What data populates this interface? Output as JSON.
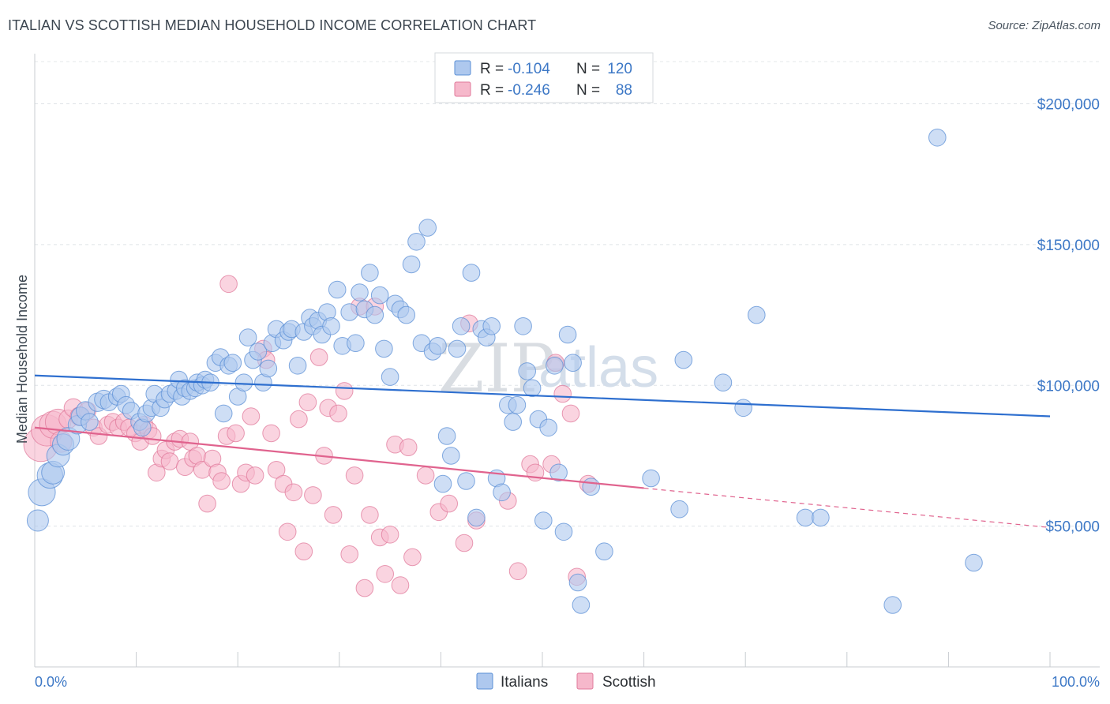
{
  "title": "ITALIAN VS SCOTTISH MEDIAN HOUSEHOLD INCOME CORRELATION CHART",
  "source": "Source: ZipAtlas.com",
  "watermark": {
    "zip": "ZIP",
    "atlas": "atlas"
  },
  "legend": {
    "r_label": "R =",
    "n_label": "N =",
    "series": [
      {
        "name": "Italians",
        "r": "-0.104",
        "n": "120",
        "fill": "#aec8ee",
        "stroke": "#5b8fd6"
      },
      {
        "name": "Scottish",
        "r": "-0.246",
        "n": "88",
        "fill": "#f6b8cb",
        "stroke": "#e07a9b"
      }
    ]
  },
  "chart_data": {
    "type": "scatter",
    "title": "ITALIAN VS SCOTTISH MEDIAN HOUSEHOLD INCOME CORRELATION CHART",
    "xlabel": "",
    "ylabel": "Median Household Income",
    "xlim": [
      0,
      100
    ],
    "ylim": [
      0,
      215000
    ],
    "x_tick_labels": [
      "0.0%",
      "100.0%"
    ],
    "y_ticks": [
      50000,
      100000,
      150000,
      200000
    ],
    "y_tick_labels": [
      "$50,000",
      "$100,000",
      "$150,000",
      "$200,000"
    ],
    "series": [
      {
        "name": "Italians",
        "color": "#5b8fd6",
        "fill": "#aec8ee",
        "trend": {
          "x0": 0,
          "y0": 103500,
          "x1": 100,
          "y1": 89000,
          "color": "#2e6fcf"
        },
        "points": [
          [
            0.3,
            52000,
            1.5
          ],
          [
            0.7,
            62000,
            1.9
          ],
          [
            1.5,
            68000,
            1.8
          ],
          [
            1.8,
            69000,
            1.6
          ],
          [
            2.3,
            75000,
            1.6
          ],
          [
            2.8,
            79000,
            1.5
          ],
          [
            3.3,
            81000,
            1.6
          ],
          [
            4.2,
            86000,
            1.3
          ],
          [
            4.5,
            89000,
            1.3
          ],
          [
            5.0,
            91000,
            1.3
          ],
          [
            5.4,
            87000,
            1.2
          ],
          [
            6.2,
            94000,
            1.3
          ],
          [
            6.8,
            95000,
            1.3
          ],
          [
            7.3,
            94000,
            1.2
          ],
          [
            8.1,
            96000,
            1.2
          ],
          [
            8.5,
            97000,
            1.2
          ],
          [
            9.0,
            93000,
            1.2
          ],
          [
            9.5,
            91000,
            1.2
          ],
          [
            10.3,
            87000,
            1.2
          ],
          [
            10.6,
            85000,
            1.2
          ],
          [
            11.0,
            90000,
            1.2
          ],
          [
            11.5,
            92000,
            1.2
          ],
          [
            11.8,
            97000,
            1.2
          ],
          [
            12.4,
            92000,
            1.2
          ],
          [
            12.8,
            95000,
            1.2
          ],
          [
            13.3,
            97000,
            1.2
          ],
          [
            13.9,
            98000,
            1.2
          ],
          [
            14.2,
            102000,
            1.2
          ],
          [
            14.5,
            96000,
            1.2
          ],
          [
            14.8,
            99000,
            1.2
          ],
          [
            15.3,
            98000,
            1.2
          ],
          [
            15.8,
            99000,
            1.2
          ],
          [
            16.0,
            101000,
            1.2
          ],
          [
            16.5,
            100000,
            1.2
          ],
          [
            16.8,
            102000,
            1.2
          ],
          [
            17.3,
            101000,
            1.2
          ],
          [
            17.8,
            108000,
            1.2
          ],
          [
            18.3,
            110000,
            1.2
          ],
          [
            18.6,
            90000,
            1.2
          ],
          [
            19.1,
            107000,
            1.2
          ],
          [
            19.5,
            108000,
            1.2
          ],
          [
            20.0,
            96000,
            1.2
          ],
          [
            20.6,
            101000,
            1.2
          ],
          [
            21.0,
            117000,
            1.2
          ],
          [
            21.5,
            109000,
            1.2
          ],
          [
            22.0,
            112000,
            1.2
          ],
          [
            22.5,
            101000,
            1.2
          ],
          [
            23.0,
            106000,
            1.2
          ],
          [
            23.4,
            115000,
            1.2
          ],
          [
            23.8,
            120000,
            1.2
          ],
          [
            24.5,
            116000,
            1.2
          ],
          [
            25.0,
            119000,
            1.2
          ],
          [
            25.3,
            120000,
            1.2
          ],
          [
            25.9,
            107000,
            1.2
          ],
          [
            26.5,
            119000,
            1.2
          ],
          [
            27.1,
            124000,
            1.2
          ],
          [
            27.4,
            121000,
            1.2
          ],
          [
            27.9,
            123000,
            1.2
          ],
          [
            28.3,
            118000,
            1.2
          ],
          [
            28.8,
            126000,
            1.2
          ],
          [
            29.2,
            121000,
            1.2
          ],
          [
            29.8,
            134000,
            1.2
          ],
          [
            30.3,
            114000,
            1.2
          ],
          [
            31.0,
            126000,
            1.2
          ],
          [
            31.6,
            115000,
            1.2
          ],
          [
            32.0,
            133000,
            1.2
          ],
          [
            32.5,
            127000,
            1.2
          ],
          [
            33.0,
            140000,
            1.2
          ],
          [
            33.5,
            125000,
            1.2
          ],
          [
            34.0,
            132000,
            1.2
          ],
          [
            34.4,
            113000,
            1.2
          ],
          [
            35.0,
            103000,
            1.2
          ],
          [
            35.5,
            129000,
            1.2
          ],
          [
            36.0,
            127000,
            1.2
          ],
          [
            36.6,
            125000,
            1.2
          ],
          [
            37.1,
            143000,
            1.2
          ],
          [
            37.6,
            151000,
            1.2
          ],
          [
            38.1,
            115000,
            1.2
          ],
          [
            38.7,
            156000,
            1.2
          ],
          [
            39.2,
            112000,
            1.2
          ],
          [
            39.7,
            114000,
            1.2
          ],
          [
            40.2,
            65000,
            1.2
          ],
          [
            40.6,
            82000,
            1.2
          ],
          [
            41.0,
            75000,
            1.2
          ],
          [
            41.6,
            113000,
            1.2
          ],
          [
            42.0,
            121000,
            1.2
          ],
          [
            42.5,
            66000,
            1.2
          ],
          [
            43.0,
            140000,
            1.2
          ],
          [
            43.5,
            53000,
            1.2
          ],
          [
            44.0,
            120000,
            1.2
          ],
          [
            44.5,
            117000,
            1.2
          ],
          [
            45.0,
            121000,
            1.2
          ],
          [
            45.5,
            67000,
            1.2
          ],
          [
            46.0,
            62000,
            1.2
          ],
          [
            46.6,
            93000,
            1.2
          ],
          [
            47.1,
            87000,
            1.2
          ],
          [
            47.5,
            93000,
            1.2
          ],
          [
            48.1,
            121000,
            1.2
          ],
          [
            48.5,
            105000,
            1.2
          ],
          [
            49.0,
            99000,
            1.2
          ],
          [
            49.6,
            88000,
            1.2
          ],
          [
            50.1,
            52000,
            1.2
          ],
          [
            50.6,
            85000,
            1.2
          ],
          [
            51.2,
            107000,
            1.2
          ],
          [
            51.6,
            69000,
            1.2
          ],
          [
            52.1,
            48000,
            1.2
          ],
          [
            52.5,
            118000,
            1.2
          ],
          [
            53.0,
            108000,
            1.2
          ],
          [
            53.5,
            30000,
            1.2
          ],
          [
            53.8,
            22000,
            1.2
          ],
          [
            54.8,
            64000,
            1.2
          ],
          [
            56.1,
            41000,
            1.2
          ],
          [
            60.7,
            67000,
            1.2
          ],
          [
            63.5,
            56000,
            1.2
          ],
          [
            63.9,
            109000,
            1.2
          ],
          [
            67.8,
            101000,
            1.2
          ],
          [
            69.8,
            92000,
            1.2
          ],
          [
            71.1,
            125000,
            1.2
          ],
          [
            75.9,
            53000,
            1.2
          ],
          [
            77.4,
            53000,
            1.2
          ],
          [
            84.5,
            22000,
            1.2
          ],
          [
            88.9,
            188000,
            1.2
          ],
          [
            92.5,
            37000,
            1.2
          ]
        ]
      },
      {
        "name": "Scottish",
        "color": "#e07a9b",
        "fill": "#f6b8cb",
        "trend": {
          "x0": 0,
          "y0": 85000,
          "x1": 60,
          "y1": 63500,
          "x2": 100,
          "y2": 49500,
          "color": "#e0638e"
        },
        "points": [
          [
            0.6,
            79000,
            2.4
          ],
          [
            1.2,
            84000,
            2.2
          ],
          [
            1.8,
            86000,
            1.9
          ],
          [
            2.3,
            87000,
            1.8
          ],
          [
            2.6,
            80000,
            1.5
          ],
          [
            3.3,
            88000,
            1.3
          ],
          [
            3.8,
            92000,
            1.3
          ],
          [
            4.4,
            89000,
            1.3
          ],
          [
            5.2,
            91000,
            1.2
          ],
          [
            5.8,
            85000,
            1.2
          ],
          [
            6.3,
            82000,
            1.2
          ],
          [
            7.2,
            86000,
            1.2
          ],
          [
            7.7,
            87000,
            1.2
          ],
          [
            8.2,
            85000,
            1.2
          ],
          [
            8.8,
            87000,
            1.2
          ],
          [
            9.3,
            85000,
            1.2
          ],
          [
            9.9,
            83000,
            1.2
          ],
          [
            10.4,
            80000,
            1.2
          ],
          [
            10.8,
            86000,
            1.2
          ],
          [
            11.2,
            84000,
            1.2
          ],
          [
            11.6,
            82000,
            1.2
          ],
          [
            12.0,
            69000,
            1.2
          ],
          [
            12.5,
            74000,
            1.2
          ],
          [
            12.9,
            77000,
            1.2
          ],
          [
            13.3,
            73000,
            1.2
          ],
          [
            13.8,
            80000,
            1.2
          ],
          [
            14.3,
            81000,
            1.2
          ],
          [
            14.8,
            71000,
            1.2
          ],
          [
            15.3,
            80000,
            1.2
          ],
          [
            15.6,
            74000,
            1.2
          ],
          [
            16.0,
            75000,
            1.2
          ],
          [
            16.5,
            70000,
            1.2
          ],
          [
            17.0,
            58000,
            1.2
          ],
          [
            17.5,
            74000,
            1.2
          ],
          [
            18.0,
            69000,
            1.2
          ],
          [
            18.4,
            66000,
            1.2
          ],
          [
            18.9,
            82000,
            1.2
          ],
          [
            19.1,
            136000,
            1.2
          ],
          [
            19.8,
            83000,
            1.2
          ],
          [
            20.3,
            65000,
            1.2
          ],
          [
            20.8,
            69000,
            1.2
          ],
          [
            21.3,
            89000,
            1.2
          ],
          [
            21.7,
            68000,
            1.2
          ],
          [
            22.5,
            113000,
            1.2
          ],
          [
            22.8,
            109000,
            1.2
          ],
          [
            23.3,
            83000,
            1.2
          ],
          [
            23.8,
            70000,
            1.2
          ],
          [
            24.5,
            65000,
            1.2
          ],
          [
            24.9,
            48000,
            1.2
          ],
          [
            25.5,
            62000,
            1.2
          ],
          [
            26.0,
            88000,
            1.2
          ],
          [
            26.5,
            41000,
            1.2
          ],
          [
            26.9,
            94000,
            1.2
          ],
          [
            27.4,
            61000,
            1.2
          ],
          [
            28.0,
            110000,
            1.2
          ],
          [
            28.5,
            75000,
            1.2
          ],
          [
            28.9,
            92000,
            1.2
          ],
          [
            29.4,
            54000,
            1.2
          ],
          [
            29.9,
            90000,
            1.2
          ],
          [
            30.5,
            98000,
            1.2
          ],
          [
            31.0,
            40000,
            1.2
          ],
          [
            31.5,
            68000,
            1.2
          ],
          [
            32.0,
            128000,
            1.2
          ],
          [
            32.5,
            28000,
            1.2
          ],
          [
            33.0,
            54000,
            1.2
          ],
          [
            33.5,
            128000,
            1.2
          ],
          [
            34.0,
            46000,
            1.2
          ],
          [
            34.5,
            33000,
            1.2
          ],
          [
            35.0,
            47000,
            1.2
          ],
          [
            35.5,
            79000,
            1.2
          ],
          [
            36.0,
            29000,
            1.2
          ],
          [
            36.8,
            78000,
            1.2
          ],
          [
            37.2,
            39000,
            1.2
          ],
          [
            38.5,
            68000,
            1.2
          ],
          [
            39.8,
            55000,
            1.2
          ],
          [
            40.8,
            58000,
            1.2
          ],
          [
            42.3,
            44000,
            1.2
          ],
          [
            42.8,
            122000,
            1.2
          ],
          [
            43.5,
            52000,
            1.2
          ],
          [
            46.6,
            59000,
            1.2
          ],
          [
            47.6,
            34000,
            1.2
          ],
          [
            48.8,
            72000,
            1.2
          ],
          [
            49.3,
            69000,
            1.2
          ],
          [
            50.9,
            72000,
            1.2
          ],
          [
            51.3,
            108000,
            1.2
          ],
          [
            52.0,
            97000,
            1.2
          ],
          [
            52.8,
            90000,
            1.2
          ],
          [
            53.4,
            32000,
            1.2
          ],
          [
            54.5,
            65000,
            1.2
          ]
        ]
      }
    ]
  }
}
